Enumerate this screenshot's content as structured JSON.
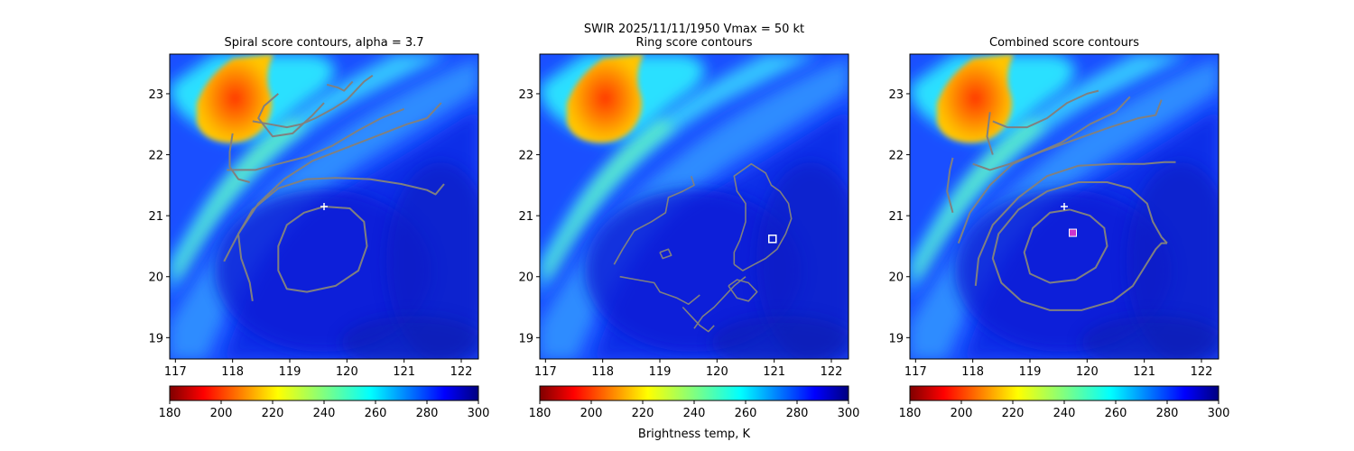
{
  "figure": {
    "suptitle_line1": "SWIR  2025/11/11/1950    Vmax = 50 kt",
    "colorbar_label": "Brightness temp, K",
    "colormap": "jet_reversed",
    "colors": {
      "contour": "#808080",
      "center_marker": "#ffffff",
      "combined_marker": "#cc33cc"
    }
  },
  "chart_data": [
    {
      "type": "heatmap",
      "title": "Spiral score contours, alpha =  3.7",
      "xlim": [
        116.9,
        122.3
      ],
      "ylim": [
        18.65,
        23.65
      ],
      "xticks": [
        117,
        118,
        119,
        120,
        121,
        122
      ],
      "yticks": [
        19,
        20,
        21,
        22,
        23
      ],
      "colorbar": {
        "min": 180,
        "max": 300,
        "ticks": [
          180,
          200,
          220,
          240,
          260,
          280,
          300
        ]
      },
      "first_guess_center": [
        119.6,
        21.15
      ],
      "contours": [
        [
          [
            119.6,
            21.15
          ],
          [
            120.05,
            21.12
          ],
          [
            120.3,
            20.9
          ],
          [
            120.35,
            20.5
          ],
          [
            120.2,
            20.1
          ],
          [
            119.8,
            19.85
          ],
          [
            119.3,
            19.75
          ],
          [
            118.95,
            19.8
          ],
          [
            118.8,
            20.1
          ],
          [
            118.8,
            20.5
          ],
          [
            118.95,
            20.85
          ],
          [
            119.25,
            21.05
          ],
          [
            119.6,
            21.15
          ]
        ],
        [
          [
            118.35,
            19.6
          ],
          [
            118.3,
            19.9
          ],
          [
            118.15,
            20.3
          ],
          [
            118.1,
            20.7
          ],
          [
            118.35,
            21.1
          ],
          [
            118.8,
            21.45
          ],
          [
            119.3,
            21.6
          ],
          [
            119.8,
            21.62
          ],
          [
            120.4,
            21.6
          ],
          [
            120.95,
            21.52
          ],
          [
            121.4,
            21.42
          ],
          [
            121.55,
            21.35
          ],
          [
            121.7,
            21.52
          ]
        ],
        [
          [
            117.85,
            20.25
          ],
          [
            118.1,
            20.7
          ],
          [
            118.45,
            21.2
          ],
          [
            118.9,
            21.6
          ],
          [
            119.4,
            21.9
          ],
          [
            119.95,
            22.1
          ],
          [
            120.5,
            22.3
          ],
          [
            121.05,
            22.5
          ],
          [
            121.4,
            22.6
          ],
          [
            121.65,
            22.85
          ]
        ],
        [
          [
            117.9,
            21.75
          ],
          [
            118.4,
            21.75
          ],
          [
            118.8,
            21.85
          ],
          [
            119.3,
            21.97
          ],
          [
            119.75,
            22.15
          ],
          [
            120.2,
            22.4
          ],
          [
            120.6,
            22.6
          ],
          [
            121.0,
            22.75
          ]
        ],
        [
          [
            118.35,
            22.55
          ],
          [
            118.65,
            22.5
          ],
          [
            118.95,
            22.45
          ],
          [
            119.2,
            22.5
          ],
          [
            119.45,
            22.6
          ],
          [
            119.75,
            22.75
          ],
          [
            120.0,
            22.9
          ],
          [
            120.3,
            23.2
          ],
          [
            120.45,
            23.3
          ]
        ],
        [
          [
            118.0,
            22.35
          ],
          [
            117.95,
            22.05
          ],
          [
            117.95,
            21.8
          ],
          [
            118.1,
            21.6
          ],
          [
            118.3,
            21.55
          ]
        ],
        [
          [
            118.8,
            23.0
          ],
          [
            118.55,
            22.8
          ],
          [
            118.45,
            22.6
          ],
          [
            118.7,
            22.3
          ],
          [
            119.05,
            22.35
          ],
          [
            119.4,
            22.65
          ],
          [
            119.6,
            22.85
          ]
        ],
        [
          [
            119.65,
            23.15
          ],
          [
            119.85,
            23.1
          ],
          [
            119.95,
            23.05
          ],
          [
            120.05,
            23.15
          ],
          [
            120.1,
            23.2
          ]
        ]
      ]
    },
    {
      "type": "heatmap",
      "title": "Ring score contours",
      "xlim": [
        116.9,
        122.3
      ],
      "ylim": [
        18.65,
        23.65
      ],
      "xticks": [
        117,
        118,
        119,
        120,
        121,
        122
      ],
      "yticks": [
        19,
        20,
        21,
        22,
        23
      ],
      "colorbar": {
        "min": 180,
        "max": 300,
        "ticks": [
          180,
          200,
          220,
          240,
          260,
          280,
          300
        ]
      },
      "ring_center": [
        120.97,
        20.62
      ],
      "contours": [
        [
          [
            118.2,
            20.2
          ],
          [
            118.35,
            20.45
          ],
          [
            118.55,
            20.75
          ],
          [
            118.85,
            20.9
          ],
          [
            119.1,
            21.05
          ],
          [
            119.15,
            21.3
          ],
          [
            119.4,
            21.4
          ],
          [
            119.6,
            21.5
          ],
          [
            119.55,
            21.65
          ]
        ],
        [
          [
            118.3,
            20.0
          ],
          [
            118.6,
            19.95
          ],
          [
            118.9,
            19.9
          ],
          [
            119.0,
            19.75
          ],
          [
            119.3,
            19.65
          ],
          [
            119.5,
            19.55
          ],
          [
            119.7,
            19.7
          ]
        ],
        [
          [
            119.4,
            19.5
          ],
          [
            119.55,
            19.35
          ],
          [
            119.7,
            19.2
          ],
          [
            119.85,
            19.1
          ],
          [
            119.95,
            19.2
          ]
        ],
        [
          [
            119.6,
            19.15
          ],
          [
            119.75,
            19.35
          ],
          [
            119.95,
            19.5
          ],
          [
            120.1,
            19.65
          ],
          [
            120.3,
            19.85
          ],
          [
            120.5,
            20.0
          ]
        ],
        [
          [
            120.3,
            20.2
          ],
          [
            120.45,
            20.1
          ],
          [
            120.65,
            20.2
          ],
          [
            120.85,
            20.3
          ],
          [
            121.05,
            20.45
          ],
          [
            121.2,
            20.7
          ],
          [
            121.3,
            20.95
          ],
          [
            121.25,
            21.2
          ],
          [
            121.1,
            21.4
          ],
          [
            120.95,
            21.5
          ],
          [
            120.85,
            21.7
          ],
          [
            120.6,
            21.85
          ],
          [
            120.3,
            21.65
          ],
          [
            120.35,
            21.4
          ],
          [
            120.5,
            21.2
          ],
          [
            120.5,
            20.9
          ],
          [
            120.4,
            20.6
          ],
          [
            120.3,
            20.4
          ],
          [
            120.3,
            20.2
          ]
        ],
        [
          [
            120.2,
            19.85
          ],
          [
            120.35,
            19.95
          ],
          [
            120.55,
            19.9
          ],
          [
            120.7,
            19.75
          ],
          [
            120.55,
            19.6
          ],
          [
            120.35,
            19.65
          ],
          [
            120.2,
            19.85
          ]
        ],
        [
          [
            119.0,
            20.4
          ],
          [
            119.15,
            20.45
          ],
          [
            119.2,
            20.35
          ],
          [
            119.05,
            20.3
          ],
          [
            119.0,
            20.4
          ]
        ]
      ]
    },
    {
      "type": "heatmap",
      "title": "Combined score contours",
      "xlim": [
        116.9,
        122.3
      ],
      "ylim": [
        18.65,
        23.65
      ],
      "xticks": [
        117,
        118,
        119,
        120,
        121,
        122
      ],
      "yticks": [
        19,
        20,
        21,
        22,
        23
      ],
      "colorbar": {
        "min": 180,
        "max": 300,
        "ticks": [
          180,
          200,
          220,
          240,
          260,
          280,
          300
        ]
      },
      "first_guess_center": [
        119.6,
        21.15
      ],
      "combined_center": [
        119.75,
        20.72
      ],
      "contours": [
        [
          [
            119.7,
            21.1
          ],
          [
            120.05,
            21.0
          ],
          [
            120.3,
            20.8
          ],
          [
            120.35,
            20.5
          ],
          [
            120.15,
            20.15
          ],
          [
            119.8,
            19.95
          ],
          [
            119.35,
            19.9
          ],
          [
            119.0,
            20.05
          ],
          [
            118.9,
            20.4
          ],
          [
            119.05,
            20.8
          ],
          [
            119.35,
            21.05
          ],
          [
            119.7,
            21.1
          ]
        ],
        [
          [
            121.4,
            20.55
          ],
          [
            121.3,
            20.65
          ],
          [
            121.15,
            20.9
          ],
          [
            121.05,
            21.2
          ],
          [
            120.75,
            21.45
          ],
          [
            120.35,
            21.55
          ],
          [
            119.85,
            21.55
          ],
          [
            119.3,
            21.4
          ],
          [
            118.8,
            21.1
          ],
          [
            118.45,
            20.7
          ],
          [
            118.35,
            20.3
          ],
          [
            118.5,
            19.9
          ],
          [
            118.85,
            19.6
          ],
          [
            119.35,
            19.45
          ],
          [
            119.9,
            19.45
          ],
          [
            120.45,
            19.6
          ],
          [
            120.8,
            19.85
          ],
          [
            121.0,
            20.15
          ],
          [
            121.2,
            20.45
          ],
          [
            121.3,
            20.55
          ],
          [
            121.4,
            20.55
          ]
        ],
        [
          [
            118.05,
            19.85
          ],
          [
            118.1,
            20.3
          ],
          [
            118.35,
            20.85
          ],
          [
            118.8,
            21.3
          ],
          [
            119.3,
            21.65
          ],
          [
            119.85,
            21.82
          ],
          [
            120.45,
            21.85
          ],
          [
            121.0,
            21.85
          ],
          [
            121.35,
            21.88
          ],
          [
            121.55,
            21.88
          ]
        ],
        [
          [
            117.75,
            20.55
          ],
          [
            117.95,
            21.05
          ],
          [
            118.3,
            21.5
          ],
          [
            118.7,
            21.85
          ],
          [
            119.2,
            22.05
          ],
          [
            119.8,
            22.25
          ],
          [
            120.4,
            22.45
          ],
          [
            120.9,
            22.6
          ],
          [
            121.2,
            22.65
          ],
          [
            121.3,
            22.9
          ]
        ],
        [
          [
            118.0,
            21.85
          ],
          [
            118.3,
            21.75
          ],
          [
            118.65,
            21.85
          ],
          [
            119.05,
            22.0
          ],
          [
            119.55,
            22.2
          ],
          [
            120.05,
            22.5
          ],
          [
            120.5,
            22.7
          ],
          [
            120.75,
            22.95
          ]
        ],
        [
          [
            117.65,
            21.05
          ],
          [
            117.55,
            21.4
          ],
          [
            117.6,
            21.75
          ],
          [
            117.65,
            21.95
          ]
        ],
        [
          [
            118.35,
            22.55
          ],
          [
            118.6,
            22.45
          ],
          [
            118.95,
            22.45
          ],
          [
            119.3,
            22.6
          ],
          [
            119.65,
            22.85
          ],
          [
            120.0,
            23.0
          ],
          [
            120.2,
            23.05
          ]
        ],
        [
          [
            118.3,
            22.7
          ],
          [
            118.25,
            22.3
          ],
          [
            118.35,
            22.0
          ]
        ]
      ]
    }
  ]
}
